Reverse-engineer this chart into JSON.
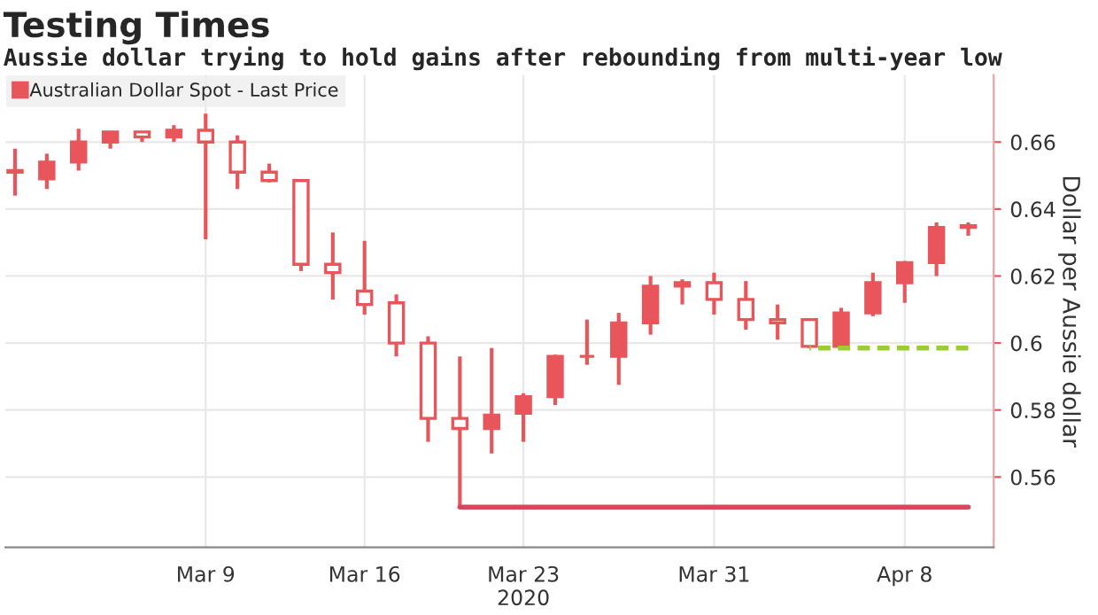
{
  "chart_data": {
    "type": "candlestick",
    "title": "Testing Times",
    "subtitle": "Aussie dollar trying to hold gains after rebounding from multi-year low",
    "ylabel": "Dollar per Aussie dollar",
    "categories": [
      null,
      null,
      null,
      null,
      null,
      null,
      "Mar 9",
      null,
      null,
      null,
      null,
      "Mar 16",
      null,
      null,
      null,
      null,
      "Mar 23\n2020",
      null,
      null,
      null,
      null,
      null,
      "Mar 31",
      null,
      null,
      null,
      null,
      null,
      "Apr 8",
      null,
      null
    ],
    "series": [
      {
        "name": "Australian Dollar Spot - Last Price",
        "color": "#e8555a",
        "ohlc": [
          [
            0.651,
            0.658,
            0.644,
            0.6515
          ],
          [
            0.649,
            0.6565,
            0.646,
            0.654
          ],
          [
            0.654,
            0.664,
            0.6515,
            0.66
          ],
          [
            0.66,
            0.663,
            0.658,
            0.663
          ],
          [
            0.663,
            0.663,
            0.66,
            0.6615
          ],
          [
            0.6615,
            0.665,
            0.66,
            0.6635
          ],
          [
            0.6635,
            0.6685,
            0.631,
            0.66
          ],
          [
            0.66,
            0.662,
            0.646,
            0.651
          ],
          [
            0.651,
            0.6535,
            0.648,
            0.6485
          ],
          [
            0.6485,
            0.6485,
            0.6215,
            0.6235
          ],
          [
            0.6235,
            0.633,
            0.613,
            0.621
          ],
          [
            0.6155,
            0.6305,
            0.6085,
            0.6115
          ],
          [
            0.612,
            0.6145,
            0.596,
            0.6
          ],
          [
            0.6,
            0.602,
            0.5705,
            0.5775
          ],
          [
            0.5775,
            0.596,
            0.551,
            0.5745
          ],
          [
            0.5745,
            0.5985,
            0.567,
            0.5785
          ],
          [
            0.579,
            0.585,
            0.5705,
            0.584
          ],
          [
            0.584,
            0.5965,
            0.5815,
            0.596
          ],
          [
            0.596,
            0.607,
            0.5935,
            0.596
          ],
          [
            0.596,
            0.609,
            0.5875,
            0.606
          ],
          [
            0.606,
            0.62,
            0.6025,
            0.617
          ],
          [
            0.617,
            0.619,
            0.6115,
            0.618
          ],
          [
            0.618,
            0.621,
            0.6085,
            0.613
          ],
          [
            0.613,
            0.6185,
            0.604,
            0.607
          ],
          [
            0.607,
            0.6115,
            0.601,
            0.606
          ],
          [
            0.607,
            0.607,
            0.5985,
            0.599
          ],
          [
            0.599,
            0.6105,
            0.598,
            0.609
          ],
          [
            0.609,
            0.621,
            0.608,
            0.618
          ],
          [
            0.618,
            0.6245,
            0.612,
            0.624
          ],
          [
            0.624,
            0.636,
            0.62,
            0.6345
          ],
          [
            0.6345,
            0.636,
            0.632,
            0.635
          ]
        ]
      },
      {
        "type": "line",
        "color": "#d9485a",
        "line_style": "solid",
        "values": [
          null,
          null,
          null,
          null,
          null,
          null,
          null,
          null,
          null,
          null,
          null,
          null,
          null,
          null,
          0.551,
          0.551,
          0.551,
          0.551,
          0.551,
          0.551,
          0.551,
          0.551,
          0.551,
          0.551,
          0.551,
          0.551,
          0.551,
          0.551,
          0.551,
          0.551,
          0.551
        ]
      },
      {
        "type": "line",
        "color": "#9acd32",
        "line_style": "dashed",
        "values": [
          null,
          null,
          null,
          null,
          null,
          null,
          null,
          null,
          null,
          null,
          null,
          null,
          null,
          null,
          null,
          null,
          null,
          null,
          null,
          null,
          null,
          null,
          null,
          null,
          null,
          0.5985,
          0.5985,
          0.5985,
          0.5985,
          0.5985,
          0.5985
        ]
      }
    ],
    "ylim": [
      0.539,
      0.68
    ],
    "yticks": [
      0.56,
      0.58,
      0.6,
      0.62,
      0.64,
      0.66
    ],
    "grid": true,
    "legend": "top left"
  }
}
